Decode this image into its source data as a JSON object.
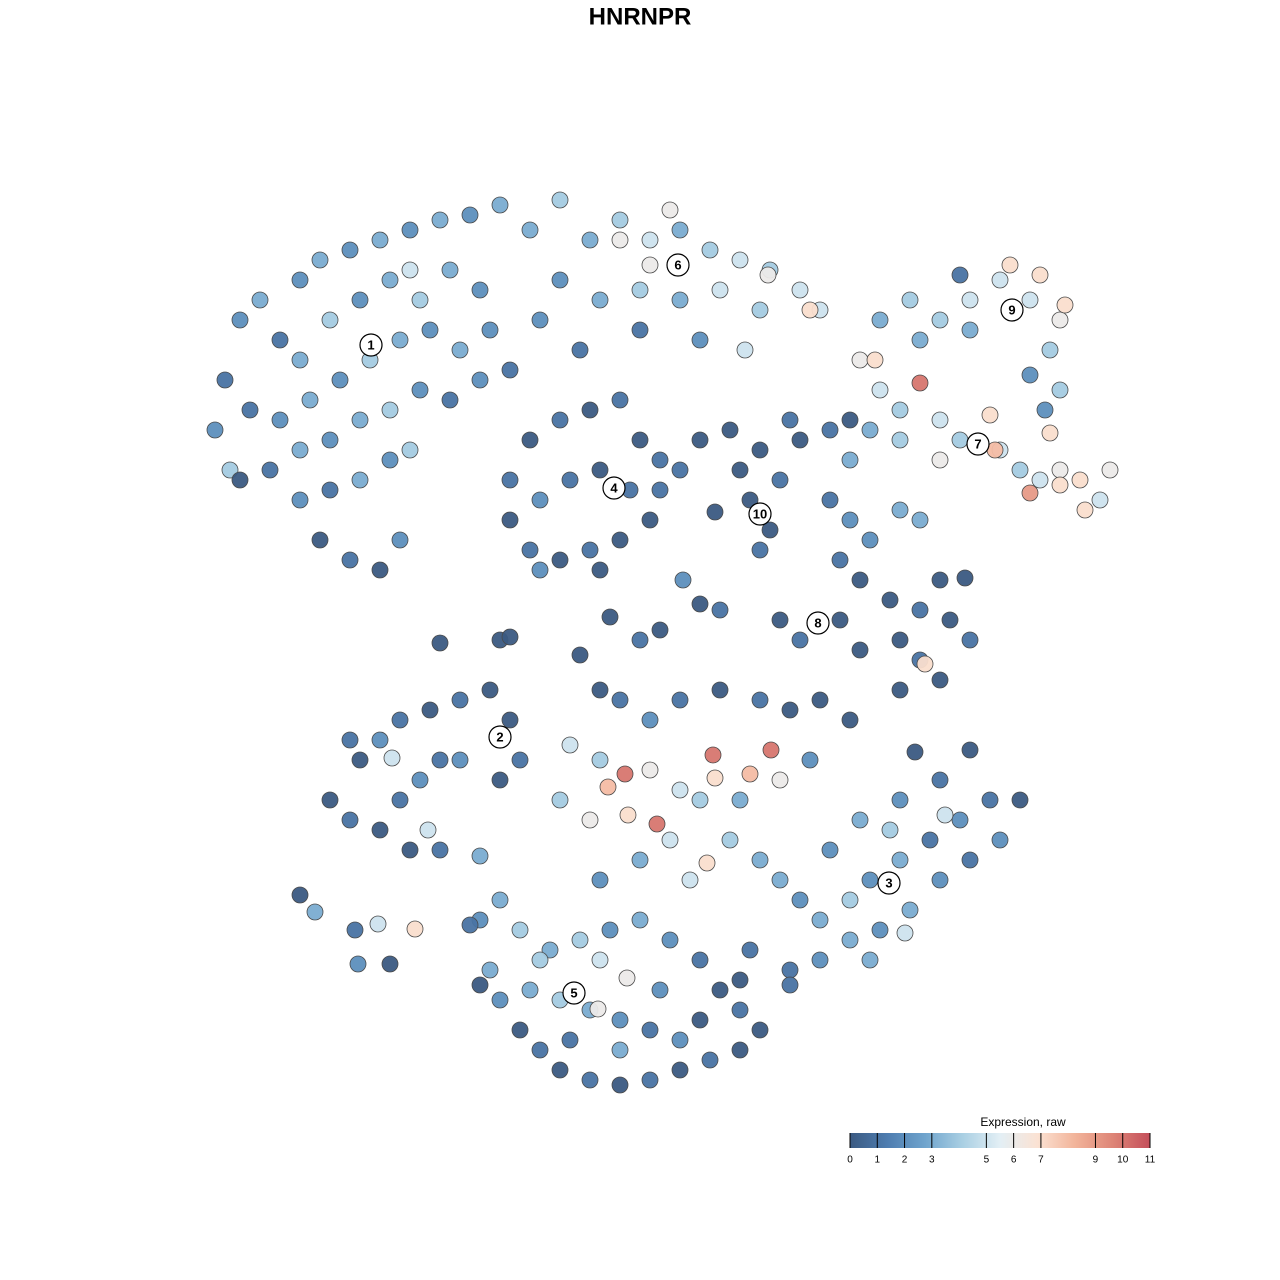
{
  "chart_data": {
    "type": "scatter",
    "title": "HNRNPR",
    "xlim": [
      0,
      930
    ],
    "ylim": [
      0,
      905
    ],
    "x": [
      15,
      25,
      40,
      60,
      80,
      100,
      120,
      150,
      180,
      210,
      240,
      270,
      300,
      100,
      130,
      160,
      190,
      220,
      250,
      280,
      50,
      80,
      110,
      140,
      170,
      200,
      230,
      260,
      290,
      70,
      100,
      130,
      160,
      190,
      220,
      250,
      280,
      310,
      100,
      130,
      160,
      190,
      210,
      120,
      150,
      180,
      200,
      30,
      40,
      210,
      330,
      360,
      390,
      420,
      450,
      480,
      510,
      540,
      570,
      600,
      620,
      360,
      400,
      440,
      480,
      520,
      560,
      420,
      450,
      568,
      610,
      340,
      380,
      440,
      500,
      470,
      545,
      680,
      710,
      740,
      770,
      800,
      830,
      860,
      810,
      840,
      865,
      760,
      720,
      850,
      830,
      860,
      770,
      660,
      680,
      700,
      720,
      740,
      760,
      790,
      800,
      820,
      840,
      860,
      880,
      900,
      910,
      885,
      830,
      795,
      860,
      740,
      670,
      700,
      650,
      675,
      845,
      850,
      310,
      330,
      360,
      390,
      420,
      440,
      460,
      310,
      340,
      370,
      400,
      430,
      450,
      330,
      360,
      390,
      420,
      340,
      400,
      460,
      500,
      530,
      480,
      515,
      540,
      560,
      580,
      550,
      570,
      560,
      590,
      600,
      630,
      650,
      630,
      650,
      670,
      700,
      720,
      640,
      660,
      690,
      720,
      750,
      770,
      740,
      765,
      700,
      720,
      740,
      700,
      725,
      580,
      600,
      640,
      660,
      520,
      500,
      483,
      400,
      420,
      450,
      480,
      520,
      560,
      590,
      620,
      650,
      370,
      400,
      425,
      457,
      513,
      571,
      408,
      428,
      515,
      550,
      507,
      450,
      480,
      500,
      540,
      580,
      610,
      360,
      390,
      470,
      530,
      440,
      400,
      490,
      560,
      300,
      310,
      380,
      440,
      460,
      410,
      240,
      130,
      150,
      180,
      200,
      220,
      240,
      160,
      180,
      200,
      230,
      260,
      290,
      310,
      320,
      300,
      260,
      150,
      210,
      240,
      280,
      192,
      228,
      100,
      115,
      155,
      178,
      215,
      158,
      190,
      580,
      600,
      620,
      650,
      670,
      700,
      730,
      760,
      790,
      820,
      800,
      770,
      740,
      710,
      680,
      650,
      620,
      590,
      670,
      700,
      740,
      770,
      715,
      660,
      690,
      630,
      745,
      705,
      280,
      300,
      320,
      350,
      380,
      410,
      440,
      470,
      500,
      520,
      540,
      560,
      540,
      510,
      480,
      450,
      420,
      390,
      360,
      340,
      320,
      300,
      290,
      280,
      330,
      360,
      390,
      420,
      450,
      480,
      400,
      427,
      398,
      340,
      420,
      500,
      460,
      370,
      270,
      550,
      540,
      590
    ],
    "y": [
      660,
      710,
      770,
      790,
      750,
      810,
      830,
      840,
      850,
      860,
      870,
      875,
      885,
      730,
      770,
      790,
      810,
      790,
      820,
      800,
      680,
      670,
      690,
      710,
      730,
      750,
      760,
      740,
      760,
      620,
      640,
      650,
      670,
      680,
      700,
      690,
      710,
      720,
      590,
      600,
      610,
      630,
      640,
      550,
      530,
      520,
      550,
      620,
      610,
      820,
      860,
      890,
      850,
      870,
      850,
      860,
      840,
      830,
      820,
      800,
      780,
      810,
      790,
      800,
      790,
      800,
      780,
      850,
      825,
      815,
      780,
      770,
      740,
      760,
      750,
      880,
      740,
      770,
      790,
      770,
      790,
      810,
      790,
      770,
      825,
      815,
      785,
      815,
      750,
      740,
      715,
      700,
      760,
      730,
      700,
      680,
      707,
      670,
      650,
      675,
      640,
      620,
      610,
      620,
      610,
      590,
      620,
      580,
      597,
      640,
      605,
      630,
      660,
      650,
      630,
      730,
      680,
      657,
      610,
      650,
      670,
      680,
      690,
      650,
      630,
      570,
      590,
      610,
      620,
      600,
      570,
      540,
      530,
      540,
      550,
      520,
      520,
      600,
      650,
      660,
      620,
      578,
      620,
      640,
      610,
      590,
      560,
      540,
      670,
      650,
      660,
      670,
      590,
      570,
      550,
      580,
      570,
      530,
      510,
      490,
      480,
      470,
      450,
      510,
      512,
      450,
      430,
      410,
      400,
      426,
      470,
      450,
      470,
      440,
      480,
      486,
      510,
      400,
      390,
      370,
      390,
      400,
      390,
      380,
      390,
      370,
      345,
      330,
      316,
      266,
      335,
      340,
      303,
      275,
      312,
      316,
      227,
      320,
      300,
      290,
      290,
      310,
      330,
      290,
      270,
      250,
      250,
      230,
      210,
      210,
      230,
      450,
      453,
      435,
      450,
      460,
      473,
      447,
      290,
      270,
      260,
      290,
      310,
      330,
      330,
      350,
      370,
      380,
      390,
      400,
      370,
      330,
      310,
      330,
      350,
      240,
      240,
      234,
      332,
      260,
      195,
      178,
      160,
      166,
      161,
      126,
      126,
      210,
      190,
      170,
      190,
      210,
      230,
      250,
      270,
      290,
      290,
      250,
      230,
      210,
      180,
      160,
      150,
      130,
      120,
      130,
      290,
      310,
      340,
      338,
      270,
      260,
      240,
      275,
      157,
      170,
      190,
      160,
      140,
      150,
      160,
      170,
      150,
      130,
      100,
      80,
      60,
      40,
      30,
      20,
      10,
      5,
      10,
      20,
      40,
      60,
      90,
      120,
      105,
      100,
      90,
      80,
      70,
      60,
      50,
      130,
      112,
      81,
      130,
      40,
      70,
      100,
      50,
      165,
      140,
      110,
      105
    ],
    "values": [
      2,
      1,
      2,
      3,
      1,
      2,
      3,
      2,
      3,
      2,
      3,
      2,
      3,
      3,
      4,
      2,
      3,
      4,
      3,
      2,
      1,
      2,
      3,
      2,
      4,
      3,
      2,
      3,
      2,
      1,
      3,
      2,
      3,
      4,
      2,
      1,
      2,
      1,
      2,
      1,
      3,
      2,
      4,
      0,
      1,
      0,
      2,
      4,
      0,
      5,
      3,
      4,
      3,
      4,
      5,
      3,
      4,
      5,
      4,
      5,
      5,
      2,
      3,
      4,
      3,
      5,
      4,
      6,
      6,
      6,
      7,
      2,
      1,
      1,
      2,
      6,
      5,
      3,
      4,
      4,
      5,
      5,
      5,
      6,
      7,
      7,
      7,
      1,
      3,
      4,
      2,
      4,
      3,
      6,
      5,
      4,
      10,
      5,
      4,
      7,
      5,
      4,
      5,
      6,
      7,
      5,
      6,
      7,
      9,
      8,
      7,
      6,
      3,
      4,
      3,
      7,
      2,
      7,
      1,
      0,
      1,
      0,
      1,
      0,
      1,
      0,
      2,
      1,
      0,
      1,
      0,
      1,
      0,
      1,
      0,
      2,
      0,
      1,
      0,
      0,
      1,
      0,
      0,
      0,
      1,
      0,
      0,
      1,
      1,
      0,
      1,
      0,
      1,
      2,
      2,
      3,
      3,
      1,
      0,
      0,
      1,
      0,
      1,
      0,
      0,
      0,
      1,
      0,
      0,
      7,
      0,
      1,
      0,
      0,
      1,
      0,
      2,
      0,
      1,
      2,
      1,
      0,
      1,
      0,
      0,
      0,
      5,
      4,
      10,
      10,
      10,
      10,
      8,
      7,
      7,
      8,
      7,
      6,
      5,
      4,
      3,
      6,
      2,
      4,
      6,
      5,
      4,
      3,
      2,
      5,
      3,
      0,
      0,
      0,
      1,
      0,
      0,
      0,
      0,
      1,
      0,
      1,
      2,
      1,
      0,
      2,
      1,
      0,
      1,
      0,
      0,
      1,
      0,
      2,
      1,
      0,
      1,
      3,
      5,
      5,
      0,
      3,
      1,
      5,
      7,
      2,
      0,
      3,
      2,
      3,
      4,
      2,
      3,
      1,
      2,
      1,
      0,
      2,
      1,
      2,
      3,
      2,
      3,
      2,
      1,
      3,
      2,
      1,
      0,
      0,
      3,
      4,
      2,
      5,
      5,
      2,
      3,
      4,
      3,
      4,
      2,
      3,
      2,
      1,
      0,
      1,
      0,
      0,
      1,
      0,
      1,
      0,
      1,
      0,
      1,
      0,
      2,
      3,
      0,
      3,
      4,
      3,
      2,
      1,
      2,
      5,
      6,
      6,
      4,
      3,
      0,
      2,
      1,
      1,
      1,
      0,
      1
    ],
    "clusters": {
      "labels": [
        "1",
        "6",
        "9",
        "7",
        "4",
        "10",
        "8",
        "2",
        "3",
        "5"
      ],
      "x": [
        171,
        478,
        812,
        778,
        414,
        560,
        618,
        300,
        689,
        374
      ],
      "y": [
        745,
        825,
        780,
        646,
        602,
        576,
        467,
        353,
        207,
        97
      ]
    },
    "colorbar_title": "Expression, raw",
    "clim": [
      0,
      11
    ],
    "cticks": [
      0,
      1,
      2,
      3,
      5,
      6,
      7,
      9,
      10,
      11
    ],
    "colormap": [
      "#3b5a82",
      "#4e7db0",
      "#6fa4cd",
      "#a9cfe3",
      "#e3eff5",
      "#fbe2d3",
      "#f2b49a",
      "#de8577",
      "#c44e5a"
    ],
    "point_stroke": "#4a4a4a"
  }
}
